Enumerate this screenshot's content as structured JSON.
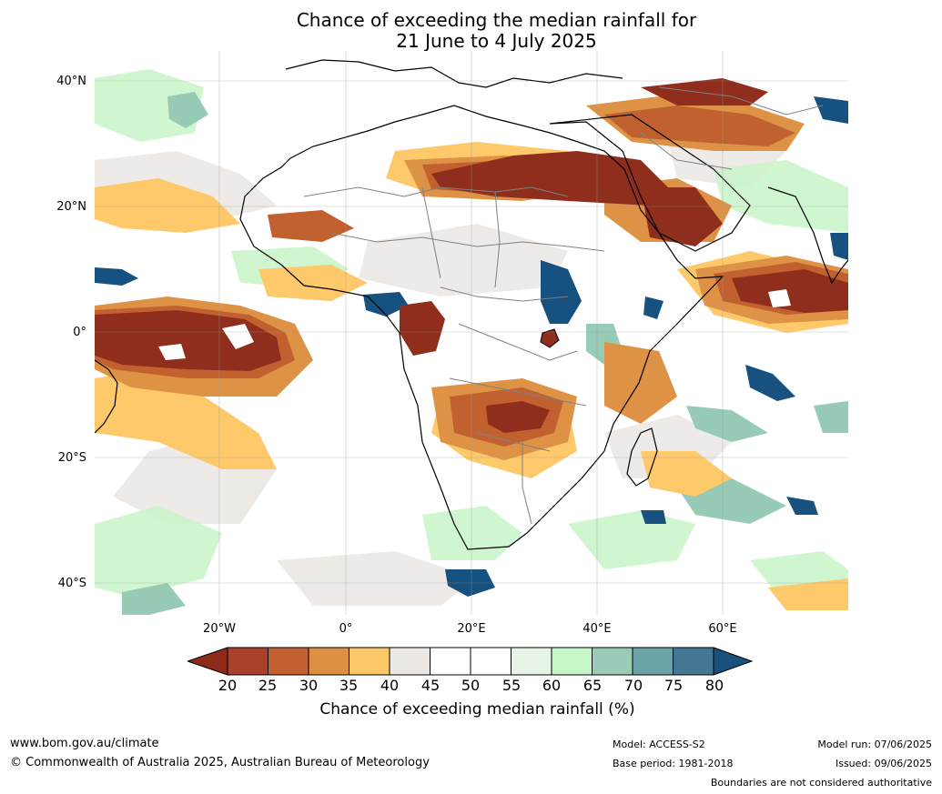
{
  "title": {
    "line1": "Chance of exceeding the median rainfall for",
    "line2": "21 June to 4 July 2025"
  },
  "map": {
    "lat_labels": [
      "40°N",
      "20°N",
      "0°",
      "20°S",
      "40°S"
    ],
    "lon_labels": [
      "20°W",
      "0°",
      "20°E",
      "40°E",
      "60°E"
    ],
    "colors": {
      "ocean_land_base": "#ffffff",
      "deep_dry": "#8f2e1c",
      "dry": "#c0612f",
      "moderate_dry": "#de9245",
      "slight_dry": "#fdc96b",
      "neutral": "#ece8e4",
      "slight_wet": "#c8f5c8",
      "wet": "#97cbb6",
      "very_wet": "#5f98a0",
      "wettest": "#17517f",
      "coast": "#000000",
      "borders": "#808080"
    }
  },
  "colorbar": {
    "ticks": [
      "20",
      "25",
      "30",
      "35",
      "40",
      "45",
      "50",
      "55",
      "60",
      "65",
      "70",
      "75",
      "80"
    ],
    "colors": [
      "#8e2a1a",
      "#a8402a",
      "#c3602f",
      "#dd8f44",
      "#fdc86a",
      "#ece8e4",
      "#ffffff",
      "#ffffff",
      "#e6f5e6",
      "#c7f7c8",
      "#99cbb7",
      "#6aa3a8",
      "#457795",
      "#17527f"
    ],
    "label": "Chance of exceeding median rainfall (%)"
  },
  "footer": {
    "website": "www.bom.gov.au/climate",
    "copyright": "© Commonwealth of Australia 2025, Australian Bureau of Meteorology",
    "model": "Model: ACCESS-S2",
    "base_period": "Base period: 1981-2018",
    "model_run": "Model run: 07/06/2025",
    "issued": "Issued: 09/06/2025",
    "disclaimer": "Boundaries are not considered authoritative"
  }
}
